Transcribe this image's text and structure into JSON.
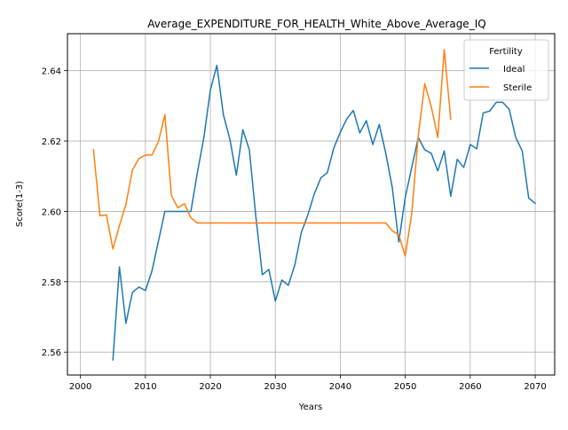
{
  "chart_data": {
    "type": "line",
    "title": "Average_EXPENDITURE_FOR_HEALTH_White_Above_Average_IQ",
    "xlabel": "Years",
    "ylabel": "Score(1-3)",
    "xlim": [
      1998,
      2073
    ],
    "ylim": [
      2.5535,
      2.6505
    ],
    "xticks": [
      2000,
      2010,
      2020,
      2030,
      2040,
      2050,
      2060,
      2070
    ],
    "yticks": [
      2.56,
      2.58,
      2.6,
      2.62,
      2.64
    ],
    "ytick_labels": [
      "2.56",
      "2.58",
      "2.60",
      "2.62",
      "2.64"
    ],
    "grid": true,
    "legend": {
      "title": "Fertility",
      "position": "top-right"
    },
    "series": [
      {
        "name": "Ideal",
        "color": "#1f77b4",
        "x": [
          2005,
          2006,
          2007,
          2008,
          2009,
          2010,
          2011,
          2012,
          2013,
          2014,
          2015,
          2016,
          2017,
          2018,
          2019,
          2020,
          2021,
          2022,
          2023,
          2024,
          2025,
          2026,
          2027,
          2028,
          2029,
          2030,
          2031,
          2032,
          2033,
          2034,
          2035,
          2036,
          2037,
          2038,
          2039,
          2040,
          2041,
          2042,
          2043,
          2044,
          2045,
          2046,
          2047,
          2048,
          2049,
          2050,
          2051,
          2052,
          2053,
          2054,
          2055,
          2056,
          2057,
          2058,
          2059,
          2060,
          2061,
          2062,
          2063,
          2064,
          2065,
          2066,
          2067,
          2068,
          2069,
          2070
        ],
        "y": [
          2.5578,
          2.5842,
          2.5682,
          2.577,
          2.5785,
          2.5775,
          2.583,
          2.5915,
          2.6,
          2.6,
          2.6,
          2.6,
          2.6,
          2.611,
          2.621,
          2.6345,
          2.6415,
          2.6275,
          2.6205,
          2.6103,
          2.6232,
          2.6175,
          2.5985,
          2.582,
          2.5835,
          2.5745,
          2.5805,
          2.579,
          2.5848,
          2.594,
          2.599,
          2.605,
          2.6095,
          2.611,
          2.618,
          2.6225,
          2.6263,
          2.6287,
          2.6223,
          2.6258,
          2.619,
          2.6247,
          2.6165,
          2.6068,
          2.5913,
          2.604,
          2.6125,
          2.621,
          2.6175,
          2.6165,
          2.6115,
          2.6172,
          2.6043,
          2.6148,
          2.6125,
          2.619,
          2.6178,
          2.628,
          2.6285,
          2.631,
          2.631,
          2.629,
          2.621,
          2.6172,
          2.6038,
          2.6023
        ]
      },
      {
        "name": "Sterile",
        "color": "#ff7f0e",
        "x": [
          2002,
          2003,
          2004,
          2005,
          2006,
          2007,
          2008,
          2009,
          2010,
          2011,
          2012,
          2013,
          2014,
          2015,
          2016,
          2017,
          2018,
          2019,
          2020,
          2021,
          2022,
          2023,
          2024,
          2025,
          2026,
          2027,
          2028,
          2029,
          2030,
          2031,
          2032,
          2033,
          2034,
          2035,
          2036,
          2037,
          2038,
          2039,
          2040,
          2041,
          2042,
          2043,
          2044,
          2045,
          2046,
          2047,
          2048,
          2049,
          2050,
          2051,
          2052,
          2053,
          2054,
          2055,
          2056,
          2057
        ],
        "y": [
          2.6175,
          2.5988,
          2.599,
          2.5893,
          2.596,
          2.602,
          2.6118,
          2.615,
          2.616,
          2.616,
          2.6198,
          2.6275,
          2.6045,
          2.601,
          2.6022,
          2.5982,
          2.5967,
          2.5967,
          2.5967,
          2.5967,
          2.5967,
          2.5967,
          2.5967,
          2.5967,
          2.5967,
          2.5967,
          2.5967,
          2.5967,
          2.5967,
          2.5967,
          2.5967,
          2.5967,
          2.5967,
          2.5967,
          2.5967,
          2.5967,
          2.5967,
          2.5967,
          2.5967,
          2.5967,
          2.5967,
          2.5967,
          2.5967,
          2.5967,
          2.5967,
          2.5967,
          2.5945,
          2.5933,
          2.5873,
          2.5995,
          2.6215,
          2.6363,
          2.6298,
          2.621,
          2.646,
          2.6262
        ]
      }
    ]
  }
}
